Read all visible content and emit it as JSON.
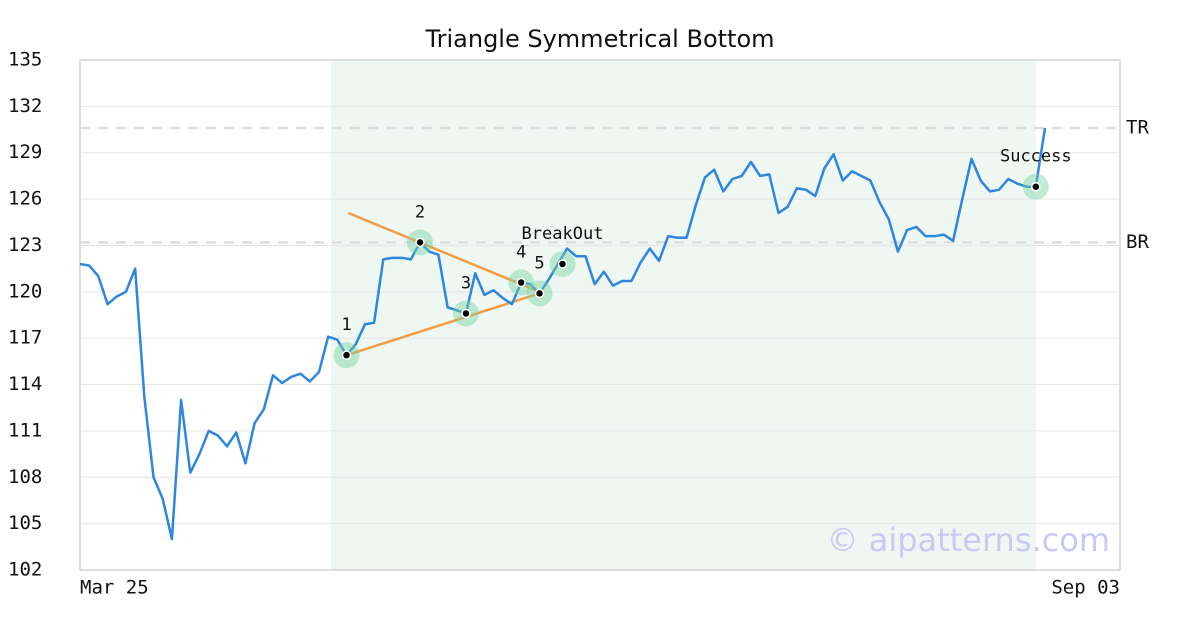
{
  "chart_data": {
    "type": "line",
    "title": "Triangle Symmetrical Bottom",
    "categories": [
      "Mar 25",
      null,
      null,
      null,
      null,
      null,
      null,
      null,
      null,
      null,
      null,
      null,
      null,
      null,
      null,
      null,
      null,
      null,
      null,
      null,
      null,
      null,
      null,
      null,
      null,
      null,
      null,
      null,
      null,
      null,
      null,
      null,
      null,
      null,
      null,
      null,
      null,
      null,
      null,
      null,
      null,
      null,
      null,
      null,
      null,
      null,
      null,
      null,
      null,
      null,
      null,
      null,
      null,
      null,
      null,
      null,
      null,
      null,
      null,
      null,
      null,
      null,
      null,
      null,
      null,
      null,
      null,
      null,
      null,
      null,
      null,
      null,
      null,
      null,
      null,
      null,
      null,
      null,
      null,
      null,
      null,
      null,
      null,
      null,
      null,
      null,
      null,
      null,
      null,
      null,
      null,
      null,
      null,
      null,
      null,
      null,
      null,
      null,
      null,
      null,
      null,
      null,
      null,
      null,
      null,
      "Sep 03"
    ],
    "series": [
      {
        "color": "#2e86de",
        "values": [
          121.8,
          121.7,
          121.0,
          119.2,
          119.7,
          120.0,
          121.5,
          113.2,
          108.0,
          106.6,
          104.0,
          113.0,
          108.3,
          109.5,
          111.0,
          110.7,
          110.0,
          110.9,
          108.9,
          111.5,
          112.4,
          114.6,
          114.1,
          114.5,
          114.7,
          114.2,
          114.8,
          117.1,
          116.9,
          115.9,
          116.6,
          117.9,
          118.0,
          122.1,
          122.2,
          122.2,
          122.1,
          123.2,
          122.6,
          122.4,
          119.0,
          118.8,
          118.6,
          121.2,
          119.8,
          120.1,
          119.6,
          119.2,
          120.6,
          120.5,
          119.9,
          120.8,
          121.8,
          122.8,
          122.3,
          122.3,
          120.5,
          121.3,
          120.4,
          120.7,
          120.7,
          121.9,
          122.8,
          122.0,
          123.6,
          123.5,
          123.5,
          125.6,
          127.4,
          127.9,
          126.5,
          127.3,
          127.5,
          128.4,
          127.5,
          127.6,
          125.1,
          125.5,
          126.7,
          126.6,
          126.2,
          128.0,
          128.9,
          127.2,
          127.8,
          127.5,
          127.2,
          125.8,
          124.7,
          122.6,
          124.0,
          124.2,
          123.6,
          123.6,
          123.7,
          123.3,
          126.0,
          128.6,
          127.2,
          126.5,
          126.6,
          127.3,
          127.0,
          126.8,
          126.8,
          130.6
        ]
      }
    ],
    "ylim": [
      102,
      135
    ],
    "yticks": [
      102,
      105,
      108,
      111,
      114,
      117,
      120,
      123,
      126,
      129,
      132,
      135
    ],
    "grid": true,
    "shade_range": [
      27.3,
      104
    ],
    "levels": [
      {
        "label": "TR",
        "value": 130.6
      },
      {
        "label": "BR",
        "value": 123.2
      }
    ],
    "trendlines": [
      {
        "color": "#f39c45",
        "x": [
          29.2,
          50
        ],
        "y": [
          125.1,
          120.0
        ]
      },
      {
        "color": "#f39c45",
        "x": [
          29,
          50
        ],
        "y": [
          115.9,
          119.9
        ]
      }
    ],
    "markers": [
      {
        "label": "1",
        "x": 29,
        "y": 115.9
      },
      {
        "label": "2",
        "x": 37,
        "y": 123.2
      },
      {
        "label": "3",
        "x": 42,
        "y": 118.6
      },
      {
        "label": "4",
        "x": 48,
        "y": 120.6
      },
      {
        "label": "5",
        "x": 50,
        "y": 119.9
      },
      {
        "label": "BreakOut",
        "x": 52.5,
        "y": 121.8
      },
      {
        "label": "Success",
        "x": 104,
        "y": 126.8
      }
    ],
    "watermark": "© aipatterns.com"
  }
}
